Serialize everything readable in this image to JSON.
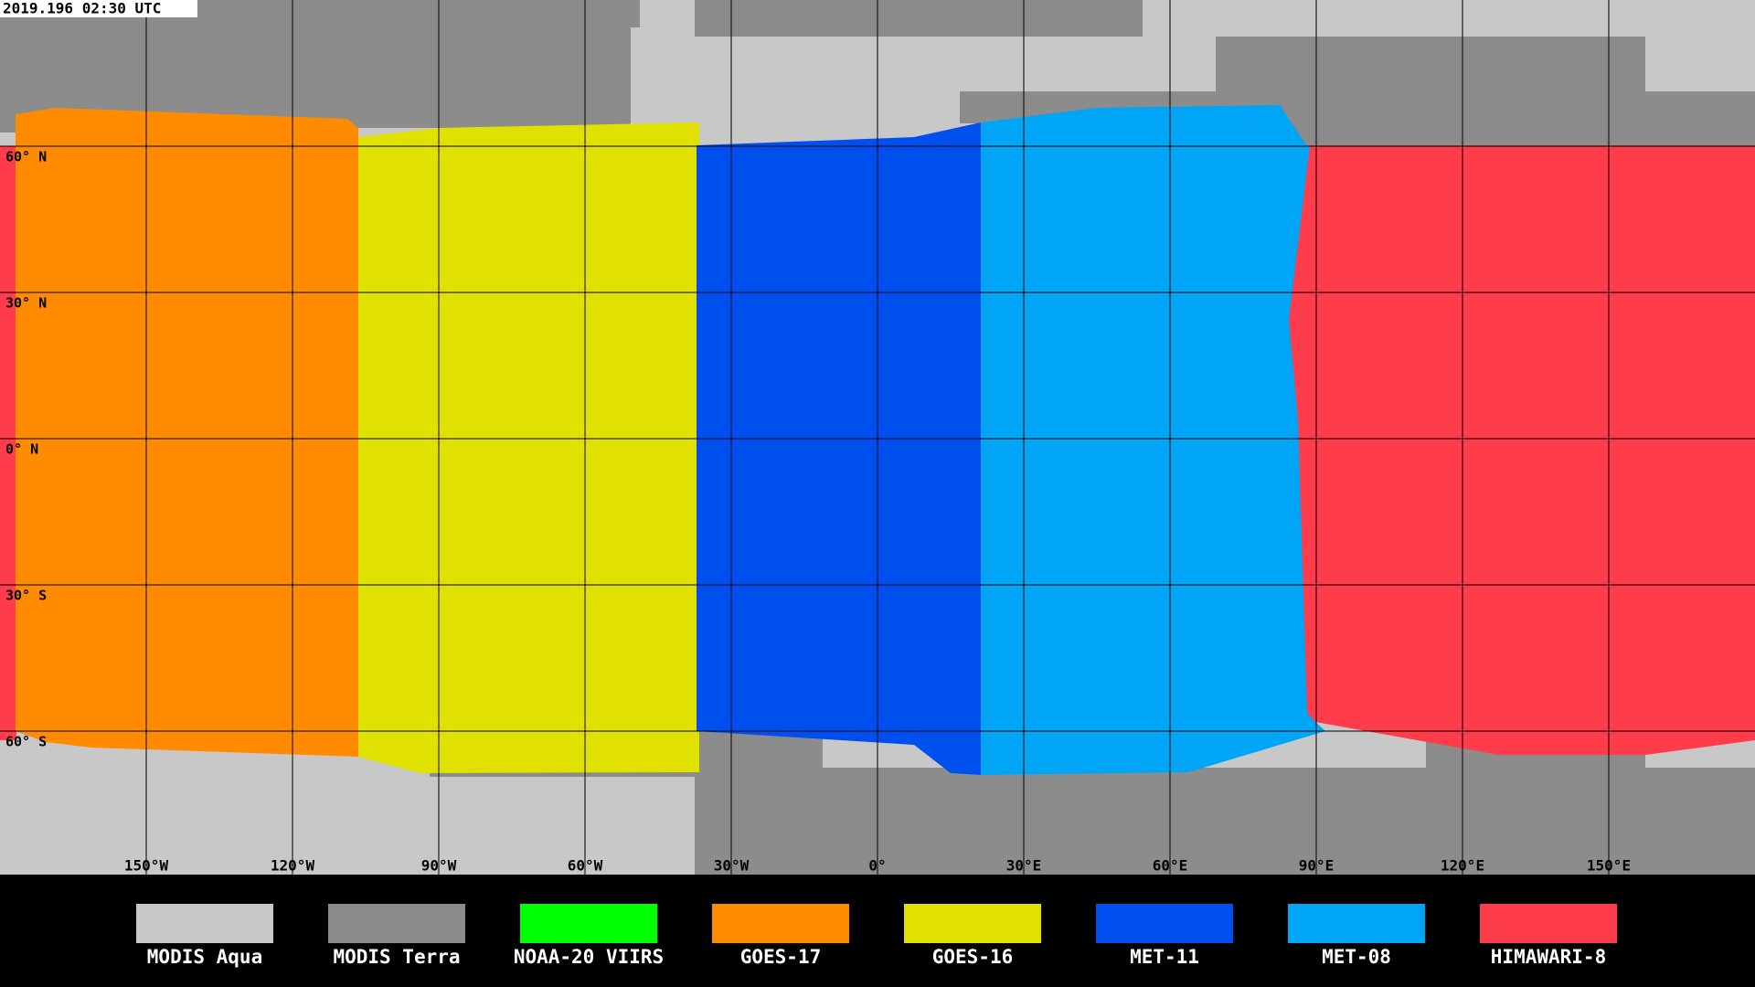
{
  "header": {
    "timestamp": "2019.196 02:30 UTC"
  },
  "map": {
    "lat_labels": [
      "60° N",
      "30° N",
      "0° N",
      "30° S",
      "60° S"
    ],
    "lon_labels": [
      "150°W",
      "120°W",
      "90°W",
      "60°W",
      "30°W",
      "0°",
      "30°E",
      "60°E",
      "90°E",
      "120°E",
      "150°E"
    ]
  },
  "legend": {
    "items": [
      {
        "name": "MODIS Aqua",
        "color": "#c8c8c8"
      },
      {
        "name": "MODIS Terra",
        "color": "#8c8c8c"
      },
      {
        "name": "NOAA-20 VIIRS",
        "color": "#00ff00"
      },
      {
        "name": "GOES-17",
        "color": "#ff8c00"
      },
      {
        "name": "GOES-16",
        "color": "#e1e100"
      },
      {
        "name": "MET-11",
        "color": "#0050f0"
      },
      {
        "name": "MET-08",
        "color": "#00a5f5"
      },
      {
        "name": "HIMAWARI-8",
        "color": "#ff3c4b"
      }
    ]
  }
}
